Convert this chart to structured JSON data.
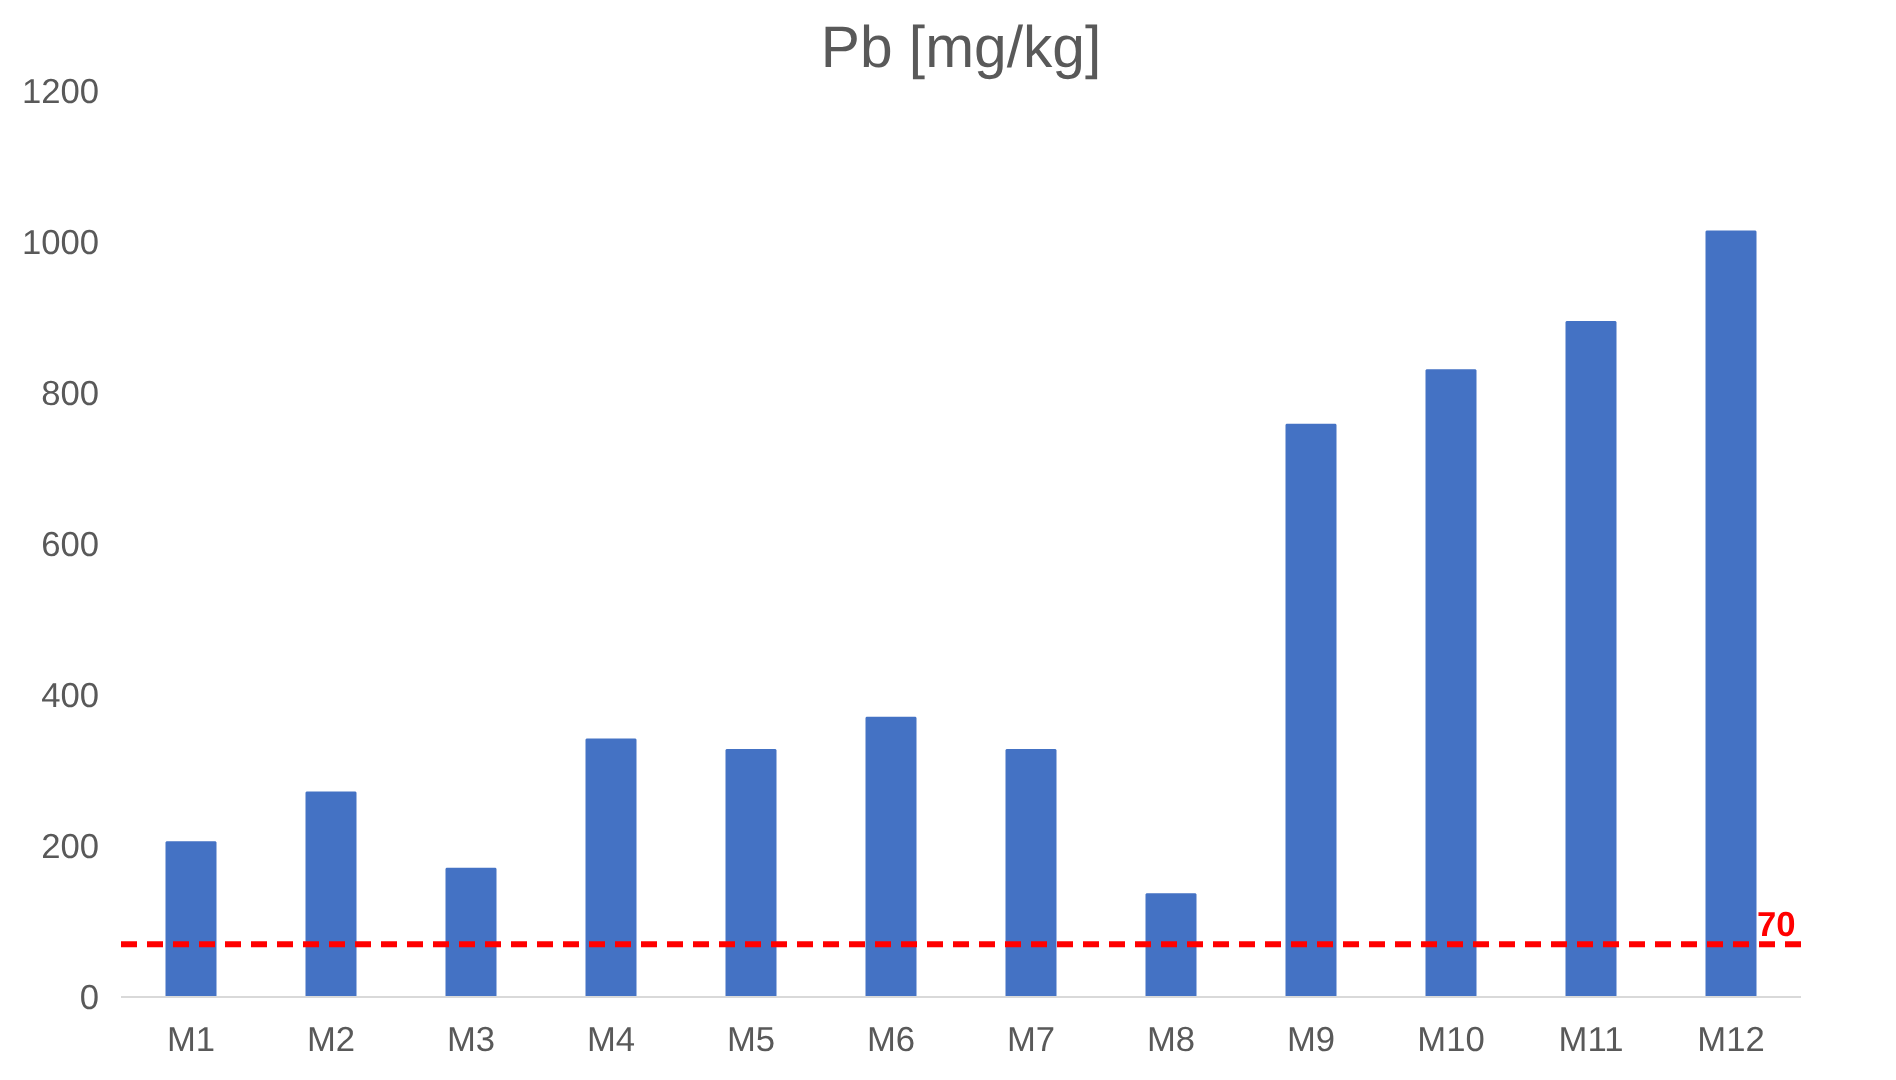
{
  "chart_data": {
    "type": "bar",
    "title": "Pb [mg/kg]",
    "categories": [
      "M1",
      "M2",
      "M3",
      "M4",
      "M5",
      "M6",
      "M7",
      "M8",
      "M9",
      "M10",
      "M11",
      "M12"
    ],
    "values": [
      205,
      271,
      170,
      341,
      327,
      370,
      327,
      136,
      758,
      830,
      894,
      1014
    ],
    "color": "#4472c4",
    "ylim": [
      0,
      1200
    ],
    "yticks": [
      0,
      200,
      400,
      600,
      800,
      1000,
      1200
    ],
    "grid": false,
    "ref_lines": [
      {
        "axis": "y",
        "value": 70,
        "label": "70",
        "color": "#ff0000",
        "line_style": "dashed"
      }
    ]
  }
}
